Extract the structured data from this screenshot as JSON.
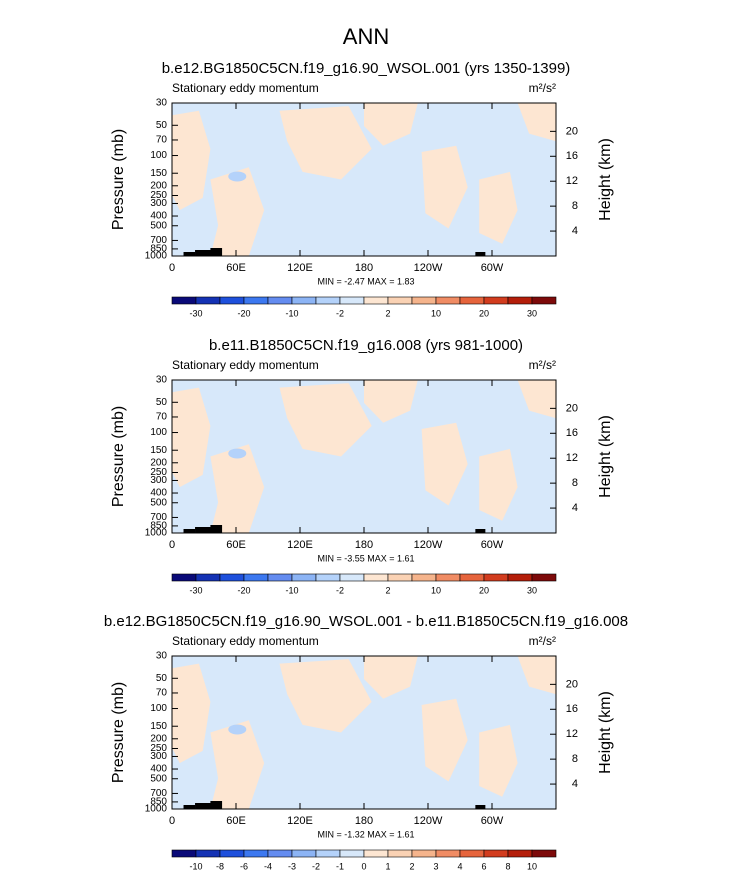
{
  "title": "ANN",
  "chart_data": [
    {
      "type": "contour",
      "title": "b.e12.BG1850C5CN.f19_g16.90_WSOL.001 (yrs 1350-1399)",
      "left_label": "Stationary eddy momentum",
      "units": "m²/s²",
      "ylabel": "Pressure (mb)",
      "y2label": "Height (km)",
      "log_y": true,
      "xlim": [
        0,
        360
      ],
      "xticks": [
        0,
        {
          "value": 60,
          "label": "60E"
        },
        {
          "value": 120,
          "label": "120E"
        },
        180,
        {
          "value": 240,
          "label": "120W"
        },
        {
          "value": 300,
          "label": "60W"
        }
      ],
      "ylim": [
        1000,
        30
      ],
      "yticks": [
        30,
        50,
        70,
        100,
        150,
        200,
        250,
        300,
        400,
        500,
        700,
        850,
        1000
      ],
      "y2lim": [
        0,
        24.55
      ],
      "y2ticks": [
        4,
        8,
        12,
        16,
        20
      ],
      "stats_label": "MIN = -2.47  MAX =  1.83",
      "colorbar_labels": [
        -30,
        -20,
        -10,
        -2,
        2,
        10,
        20,
        30
      ],
      "colors": [
        "#0a0a78",
        "#1432b4",
        "#1e50dc",
        "#3c78f0",
        "#648cf0",
        "#8cb4f5",
        "#b4d2fa",
        "#d7e8fa",
        "#fde6d2",
        "#fad2b4",
        "#f5b48c",
        "#f08c64",
        "#e6643c",
        "#d23c1e",
        "#b41e0a",
        "#7d0a0a"
      ]
    },
    {
      "type": "contour",
      "title": "b.e11.B1850C5CN.f19_g16.008 (yrs 981-1000)",
      "left_label": "Stationary eddy momentum",
      "units": "m²/s²",
      "ylabel": "Pressure (mb)",
      "y2label": "Height (km)",
      "log_y": true,
      "xlim": [
        0,
        360
      ],
      "xticks": [
        0,
        {
          "value": 60,
          "label": "60E"
        },
        {
          "value": 120,
          "label": "120E"
        },
        180,
        {
          "value": 240,
          "label": "120W"
        },
        {
          "value": 300,
          "label": "60W"
        }
      ],
      "ylim": [
        1000,
        30
      ],
      "yticks": [
        30,
        50,
        70,
        100,
        150,
        200,
        250,
        300,
        400,
        500,
        700,
        850,
        1000
      ],
      "y2lim": [
        0,
        24.55
      ],
      "y2ticks": [
        4,
        8,
        12,
        16,
        20
      ],
      "stats_label": "MIN = -3.55  MAX =  1.61",
      "colorbar_labels": [
        -30,
        -20,
        -10,
        -2,
        2,
        10,
        20,
        30
      ],
      "colors": [
        "#0a0a78",
        "#1432b4",
        "#1e50dc",
        "#3c78f0",
        "#648cf0",
        "#8cb4f5",
        "#b4d2fa",
        "#d7e8fa",
        "#fde6d2",
        "#fad2b4",
        "#f5b48c",
        "#f08c64",
        "#e6643c",
        "#d23c1e",
        "#b41e0a",
        "#7d0a0a"
      ]
    },
    {
      "type": "contour",
      "title": "b.e12.BG1850C5CN.f19_g16.90_WSOL.001 - b.e11.B1850C5CN.f19_g16.008",
      "left_label": "Stationary eddy momentum",
      "units": "m²/s²",
      "ylabel": "Pressure (mb)",
      "y2label": "Height (km)",
      "log_y": true,
      "xlim": [
        0,
        360
      ],
      "xticks": [
        0,
        {
          "value": 60,
          "label": "60E"
        },
        {
          "value": 120,
          "label": "120E"
        },
        180,
        {
          "value": 240,
          "label": "120W"
        },
        {
          "value": 300,
          "label": "60W"
        }
      ],
      "ylim": [
        1000,
        30
      ],
      "yticks": [
        30,
        50,
        70,
        100,
        150,
        200,
        250,
        300,
        400,
        500,
        700,
        850,
        1000
      ],
      "y2lim": [
        0,
        24.55
      ],
      "y2ticks": [
        4,
        8,
        12,
        16,
        20
      ],
      "stats_label": "MIN = -1.32  MAX =  1.61",
      "colorbar_labels": [
        -10,
        -8,
        -6,
        -4,
        -3,
        -2,
        -1,
        0,
        1,
        2,
        3,
        4,
        6,
        8,
        10
      ],
      "colors": [
        "#0a0a78",
        "#1432b4",
        "#1e50dc",
        "#3c78f0",
        "#648cf0",
        "#8cb4f5",
        "#b4d2fa",
        "#d7e8fa",
        "#fde6d2",
        "#fad2b4",
        "#f5b48c",
        "#f08c64",
        "#e6643c",
        "#d23c1e",
        "#b41e0a",
        "#7d0a0a"
      ]
    }
  ]
}
